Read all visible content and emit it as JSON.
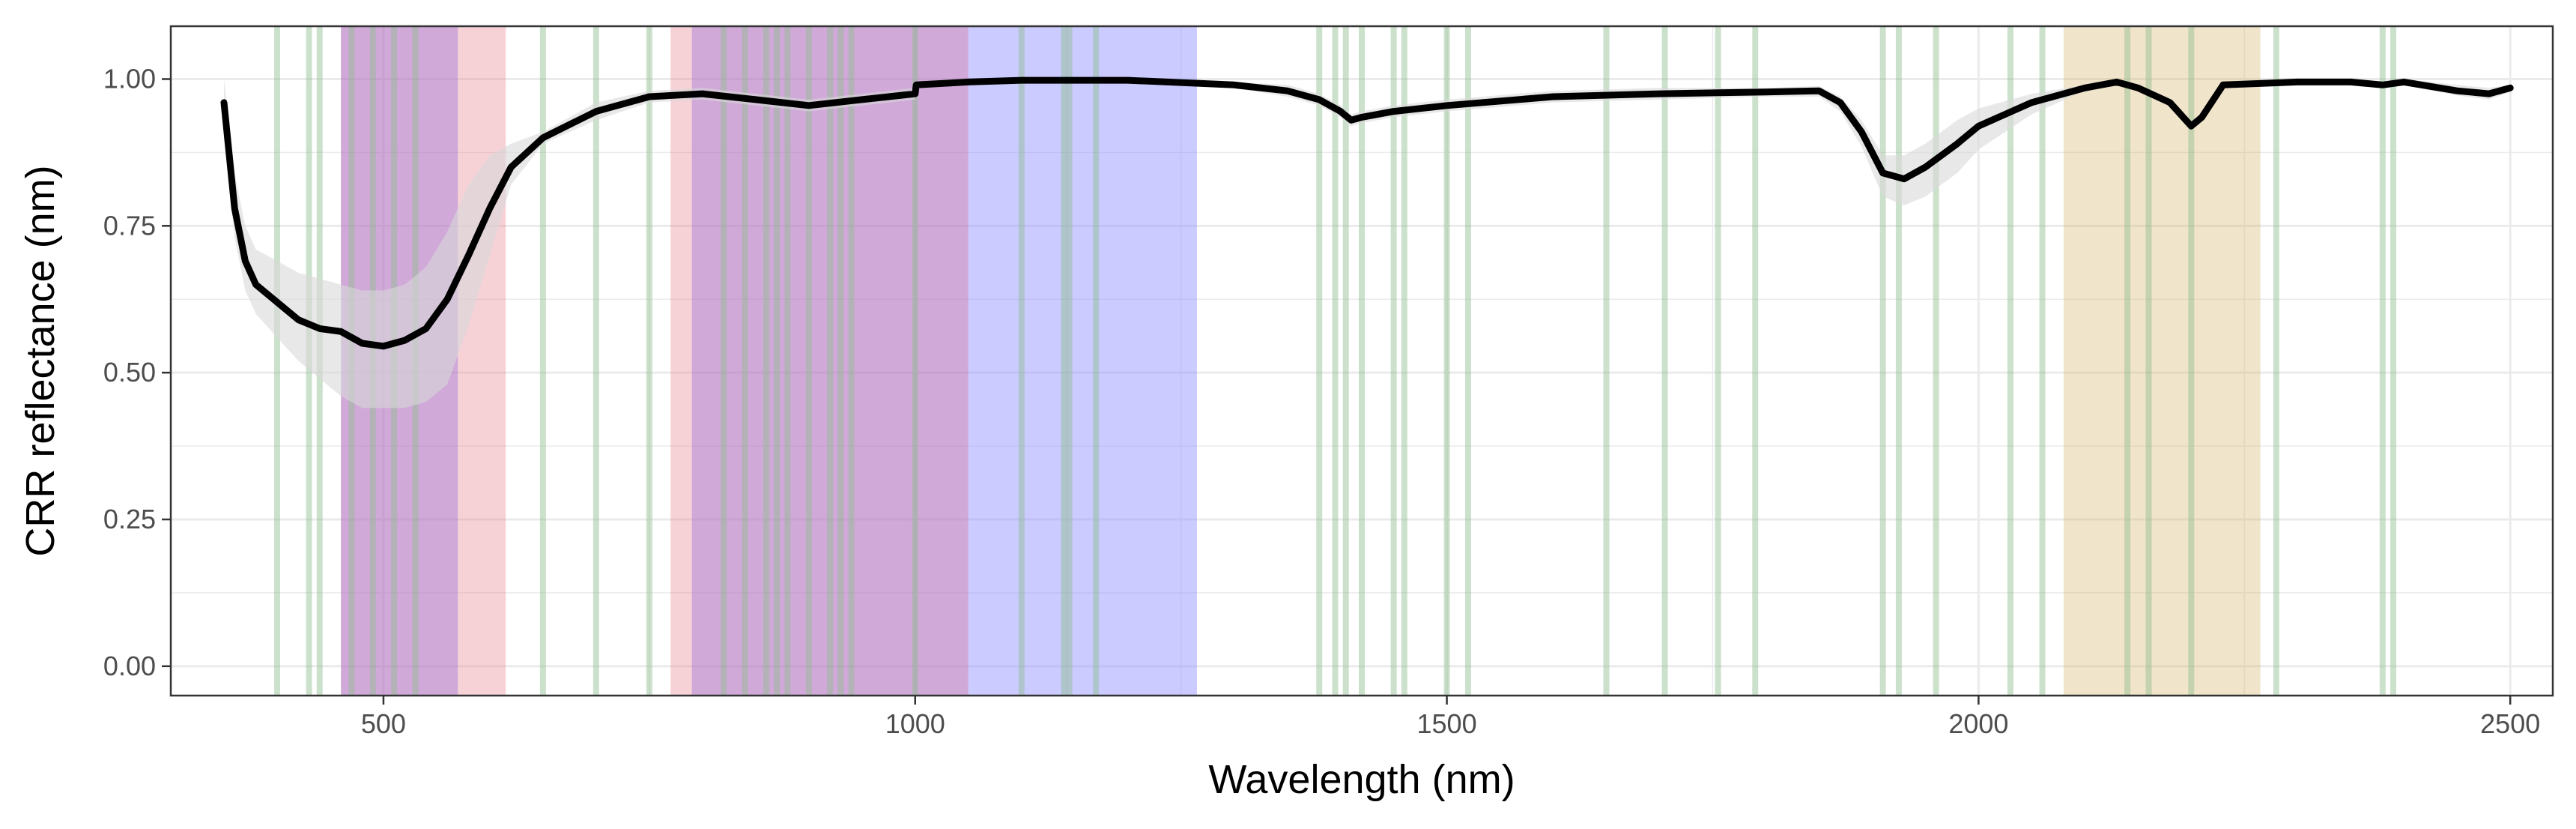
{
  "chart_data": {
    "type": "line",
    "title": "",
    "xlabel": "Wavelength (nm)",
    "ylabel": "CRR reflectance (nm)",
    "xlim": [
      300,
      2540
    ],
    "ylim": [
      -0.05,
      1.09
    ],
    "x_ticks": [
      500,
      1000,
      1500,
      2000,
      2500
    ],
    "x_tick_labels": [
      "500",
      "1000",
      "1500",
      "2000",
      "2500"
    ],
    "y_ticks": [
      0,
      0.25,
      0.5,
      0.75,
      1.0
    ],
    "y_tick_labels": [
      "0.00",
      "0.25",
      "0.50",
      "0.75",
      "1.00"
    ],
    "grid": true,
    "legend": "none",
    "colors": {
      "line": "#000000",
      "ribbon": "#d9d9d9",
      "grid": "#ebebeb",
      "panel_border": "#333333",
      "band_lines": "#8fbc8f"
    },
    "series": [
      {
        "x": [
          350,
          360,
          370,
          380,
          400,
          420,
          440,
          460,
          480,
          500,
          520,
          540,
          560,
          580,
          600,
          620,
          650,
          700,
          750,
          800,
          850,
          900,
          950,
          1000,
          1001,
          1050,
          1100,
          1200,
          1300,
          1350,
          1380,
          1400,
          1410,
          1420,
          1450,
          1500,
          1600,
          1700,
          1800,
          1850,
          1870,
          1890,
          1910,
          1930,
          1950,
          1980,
          2000,
          2050,
          2100,
          2130,
          2150,
          2180,
          2200,
          2210,
          2230,
          2300,
          2350,
          2380,
          2400,
          2450,
          2480,
          2500
        ],
        "y": [
          0.96,
          0.78,
          0.69,
          0.65,
          0.62,
          0.59,
          0.575,
          0.57,
          0.55,
          0.545,
          0.555,
          0.575,
          0.625,
          0.7,
          0.78,
          0.85,
          0.9,
          0.945,
          0.97,
          0.975,
          0.965,
          0.955,
          0.965,
          0.975,
          0.99,
          0.995,
          0.998,
          0.998,
          0.99,
          0.98,
          0.965,
          0.945,
          0.93,
          0.935,
          0.945,
          0.955,
          0.97,
          0.975,
          0.978,
          0.98,
          0.96,
          0.91,
          0.84,
          0.83,
          0.85,
          0.89,
          0.92,
          0.96,
          0.985,
          0.995,
          0.985,
          0.96,
          0.92,
          0.935,
          0.99,
          0.995,
          0.995,
          0.99,
          0.995,
          0.98,
          0.975,
          0.985
        ],
        "ribbon_low": [
          0.9,
          0.73,
          0.64,
          0.6,
          0.56,
          0.52,
          0.49,
          0.46,
          0.44,
          0.44,
          0.44,
          0.45,
          0.48,
          0.58,
          0.7,
          0.82,
          0.89,
          0.93,
          0.96,
          0.965,
          0.955,
          0.945,
          0.955,
          0.965,
          0.985,
          0.99,
          0.995,
          0.995,
          0.985,
          0.97,
          0.955,
          0.935,
          0.92,
          0.925,
          0.935,
          0.945,
          0.96,
          0.965,
          0.97,
          0.97,
          0.945,
          0.885,
          0.8,
          0.785,
          0.8,
          0.84,
          0.88,
          0.94,
          0.98,
          0.99,
          0.98,
          0.955,
          0.915,
          0.93,
          0.985,
          0.99,
          0.99,
          0.985,
          0.99,
          0.972,
          0.965,
          0.978
        ],
        "ribbon_high": [
          1.0,
          0.84,
          0.75,
          0.71,
          0.69,
          0.67,
          0.66,
          0.65,
          0.64,
          0.64,
          0.65,
          0.68,
          0.74,
          0.82,
          0.87,
          0.89,
          0.91,
          0.96,
          0.98,
          0.985,
          0.975,
          0.965,
          0.975,
          0.985,
          0.995,
          0.998,
          1.0,
          1.0,
          0.995,
          0.99,
          0.975,
          0.955,
          0.94,
          0.945,
          0.955,
          0.965,
          0.98,
          0.985,
          0.985,
          0.988,
          0.97,
          0.93,
          0.87,
          0.87,
          0.89,
          0.93,
          0.95,
          0.975,
          0.99,
          1.0,
          0.99,
          0.965,
          0.925,
          0.94,
          0.995,
          1.0,
          1.0,
          0.995,
          1.0,
          0.99,
          0.985,
          0.99
        ]
      }
    ],
    "shaded_bands": [
      {
        "x0": 460,
        "x1": 570,
        "color": "#b070c0",
        "opacity": 0.6
      },
      {
        "x0": 570,
        "x1": 615,
        "color": "#e88a96",
        "opacity": 0.38
      },
      {
        "x0": 770,
        "x1": 790,
        "color": "#e88a96",
        "opacity": 0.38
      },
      {
        "x0": 790,
        "x1": 1050,
        "color": "#b070c0",
        "opacity": 0.6
      },
      {
        "x0": 1050,
        "x1": 1265,
        "color": "#8c8cff",
        "opacity": 0.45
      },
      {
        "x0": 2080,
        "x1": 2265,
        "color": "#d4b26a",
        "opacity": 0.35
      }
    ],
    "band_lines_x": [
      400,
      430,
      440,
      470,
      490,
      510,
      530,
      650,
      700,
      750,
      820,
      840,
      860,
      870,
      880,
      900,
      920,
      930,
      940,
      1000,
      1100,
      1140,
      1145,
      1170,
      1380,
      1395,
      1405,
      1420,
      1450,
      1460,
      1500,
      1520,
      1650,
      1705,
      1755,
      1790,
      1910,
      1925,
      1960,
      2030,
      2060,
      2140,
      2160,
      2200,
      2280,
      2380,
      2390
    ]
  }
}
